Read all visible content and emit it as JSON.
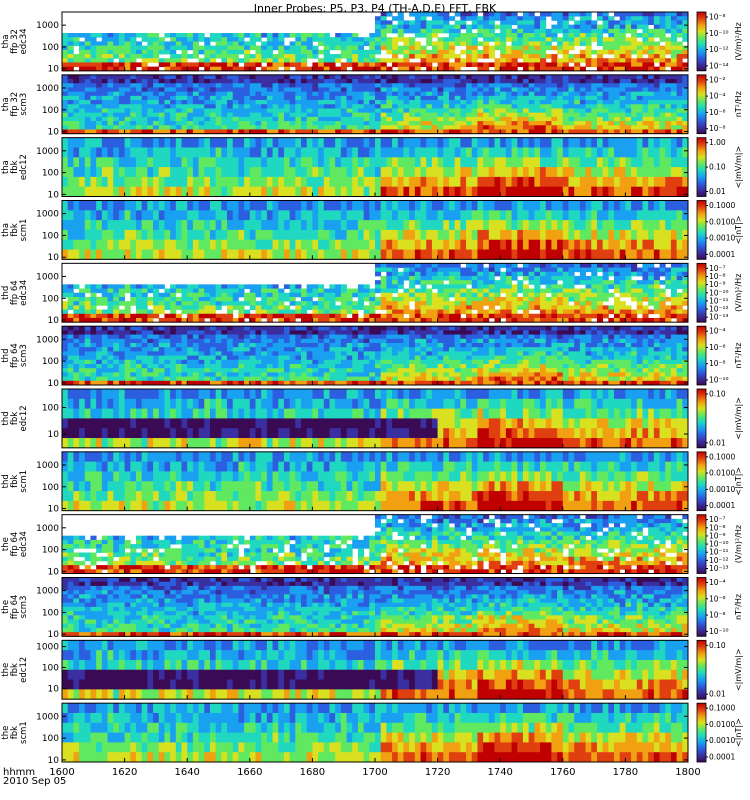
{
  "title": "Inner Probes: P5, P3, P4 (TH-A,D,E) FFT, FBK",
  "time_header": {
    "line1": "hhmm",
    "line2": "2010 Sep 05"
  },
  "colors": {
    "colormap": [
      "#3b0a55",
      "#3a2fa0",
      "#2b5fe0",
      "#1aa0f0",
      "#20d8c0",
      "#60e860",
      "#d8e020",
      "#f0a010",
      "#e04010",
      "#c00000"
    ]
  },
  "chart_data": {
    "type": "heatmap",
    "title": "Inner Probes: P5, P3, P4 (TH-A,D,E) FFT, FBK",
    "x_ticks": [
      "1600",
      "1620",
      "1640",
      "1660",
      "1680",
      "1700",
      "1720",
      "1740",
      "1760",
      "1780",
      "1800"
    ],
    "xlim": [
      1600,
      1800
    ],
    "panels": [
      {
        "id": "tha-ffp32-edc34",
        "ylabel": [
          "tha",
          "ffp 32",
          "edc34"
        ],
        "yticks": [
          "1000",
          "100",
          "10"
        ],
        "ylim": [
          8,
          4000
        ],
        "yscale": "log",
        "cbar_label": "(V/m)²/Hz",
        "cbar_ticks": [
          "10⁻⁸",
          "10⁻¹⁰",
          "10⁻¹²",
          "10⁻¹⁴"
        ]
      },
      {
        "id": "tha-ffp32-scm3",
        "ylabel": [
          "tha",
          "ffp 32",
          "scm3"
        ],
        "yticks": [
          "1000",
          "100",
          "10"
        ],
        "ylim": [
          8,
          4000
        ],
        "yscale": "log",
        "cbar_label": "nT²/Hz",
        "cbar_ticks": [
          "10⁻²",
          "10⁻⁴",
          "10⁻⁶",
          "10⁻⁸"
        ]
      },
      {
        "id": "tha-fbk-edc12",
        "ylabel": [
          "tha",
          "fbk",
          "edc12"
        ],
        "yticks": [
          "1000",
          "100",
          "10"
        ],
        "ylim": [
          8,
          4000
        ],
        "yscale": "log",
        "cbar_label": "<|mV/m|>",
        "cbar_ticks": [
          "1.00",
          "0.10",
          "0.01"
        ]
      },
      {
        "id": "tha-fbk-scm1",
        "ylabel": [
          "tha",
          "fbk",
          "scm1"
        ],
        "yticks": [
          "1000",
          "100",
          "10"
        ],
        "ylim": [
          8,
          4000
        ],
        "yscale": "log",
        "cbar_label": "<|nT|>",
        "cbar_ticks": [
          "0.1000",
          "0.0100",
          "0.0010",
          "0.0001"
        ]
      },
      {
        "id": "thd-ffp64-edc34",
        "ylabel": [
          "thd",
          "ffp 64",
          "edc34"
        ],
        "yticks": [
          "1000",
          "100",
          "10"
        ],
        "ylim": [
          8,
          4000
        ],
        "yscale": "log",
        "cbar_label": "(V/m)²/Hz",
        "cbar_ticks": [
          "10⁻⁷",
          "10⁻⁸",
          "10⁻⁹",
          "10⁻¹⁰",
          "10⁻¹¹",
          "10⁻¹²",
          "10⁻¹³"
        ]
      },
      {
        "id": "thd-ffp64-scm3",
        "ylabel": [
          "thd",
          "ffp 64",
          "scm3"
        ],
        "yticks": [
          "1000",
          "100",
          "10"
        ],
        "ylim": [
          8,
          4000
        ],
        "yscale": "log",
        "cbar_label": "nT²/Hz",
        "cbar_ticks": [
          "10⁻⁴",
          "10⁻⁶",
          "10⁻⁸",
          "10⁻¹⁰"
        ]
      },
      {
        "id": "thd-fbk-edc12",
        "ylabel": [
          "thd",
          "fbk",
          "edc12"
        ],
        "yticks": [
          "100",
          "10"
        ],
        "ylim": [
          3,
          500
        ],
        "yscale": "log",
        "cbar_label": "<|mV/m|>",
        "cbar_ticks": [
          "0.10",
          "0.01"
        ]
      },
      {
        "id": "thd-fbk-scm1",
        "ylabel": [
          "thd",
          "fbk",
          "scm1"
        ],
        "yticks": [
          "1000",
          "100",
          "10"
        ],
        "ylim": [
          8,
          4000
        ],
        "yscale": "log",
        "cbar_label": "<|nT|>",
        "cbar_ticks": [
          "0.1000",
          "0.0100",
          "0.0010",
          "0.0001"
        ]
      },
      {
        "id": "the-ffp64-edc34",
        "ylabel": [
          "the",
          "ffp 64",
          "edc34"
        ],
        "yticks": [
          "1000",
          "100",
          "10"
        ],
        "ylim": [
          8,
          4000
        ],
        "yscale": "log",
        "cbar_label": "(V/m)²/Hz",
        "cbar_ticks": [
          "10⁻⁷",
          "10⁻⁸",
          "10⁻⁹",
          "10⁻¹⁰",
          "10⁻¹¹",
          "10⁻¹²",
          "10⁻¹³"
        ]
      },
      {
        "id": "the-ffp64-scm3",
        "ylabel": [
          "the",
          "ffp 64",
          "scm3"
        ],
        "yticks": [
          "1000",
          "100",
          "10"
        ],
        "ylim": [
          8,
          4000
        ],
        "yscale": "log",
        "cbar_label": "nT²/Hz",
        "cbar_ticks": [
          "10⁻⁴",
          "10⁻⁶",
          "10⁻⁸",
          "10⁻¹⁰"
        ]
      },
      {
        "id": "the-fbk-edc12",
        "ylabel": [
          "the",
          "fbk",
          "edc12"
        ],
        "yticks": [
          "1000",
          "100",
          "10"
        ],
        "ylim": [
          3,
          2000
        ],
        "yscale": "log",
        "cbar_label": "<|mV/m|>",
        "cbar_ticks": [
          "0.10",
          "0.01"
        ]
      },
      {
        "id": "the-fbk-scm1",
        "ylabel": [
          "the",
          "fbk",
          "scm1"
        ],
        "yticks": [
          "1000",
          "100",
          "10"
        ],
        "ylim": [
          8,
          4000
        ],
        "yscale": "log",
        "cbar_label": "<|nT|>",
        "cbar_ticks": [
          "0.1000",
          "0.0100",
          "0.0010",
          "0.0001"
        ]
      }
    ]
  }
}
